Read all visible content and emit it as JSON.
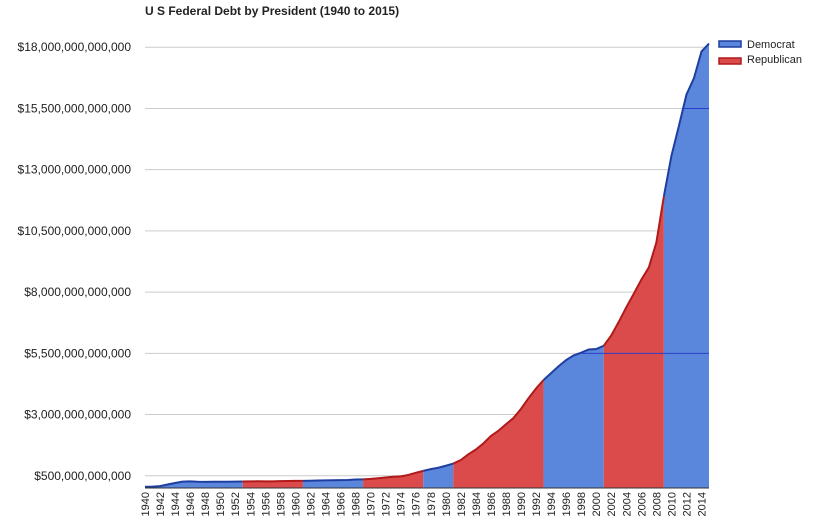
{
  "chart_data": {
    "type": "area",
    "title": "U S Federal Debt by President (1940 to 2015)",
    "xlabel": "",
    "ylabel": "",
    "xlim": [
      1940,
      2015
    ],
    "ylim": [
      0,
      18500000000000
    ],
    "y_ticks": [
      500000000000,
      3000000000000,
      5500000000000,
      8000000000000,
      10500000000000,
      13000000000000,
      15500000000000,
      18000000000000
    ],
    "y_tick_labels": [
      "$500,000,000,000",
      "$3,000,000,000,000",
      "$5,500,000,000,000",
      "$8,000,000,000,000",
      "$10,500,000,000,000",
      "$13,000,000,000,000",
      "$15,500,000,000,000",
      "$18,000,000,000,000"
    ],
    "x_tick_labels": [
      "1940",
      "1942",
      "1944",
      "1946",
      "1948",
      "1950",
      "1952",
      "1954",
      "1956",
      "1958",
      "1960",
      "1962",
      "1964",
      "1966",
      "1968",
      "1970",
      "1972",
      "1974",
      "1976",
      "1978",
      "1980",
      "1982",
      "1984",
      "1986",
      "1988",
      "1990",
      "1992",
      "1994",
      "1996",
      "1998",
      "2000",
      "2002",
      "2004",
      "2006",
      "2008",
      "2010",
      "2012",
      "2014"
    ],
    "grid": true,
    "legend_position": "top-right",
    "colors": {
      "Democrat": "#5a86dc",
      "Republican": "#dc4b4b",
      "Democrat_line": "#1f3fa0",
      "Republican_line": "#b01a1a"
    },
    "series": [
      {
        "name": "Democrat"
      },
      {
        "name": "Republican"
      }
    ],
    "party_periods": [
      {
        "party": "Democrat",
        "start": 1940,
        "end": 1953
      },
      {
        "party": "Republican",
        "start": 1953,
        "end": 1961
      },
      {
        "party": "Democrat",
        "start": 1961,
        "end": 1969
      },
      {
        "party": "Republican",
        "start": 1969,
        "end": 1977
      },
      {
        "party": "Democrat",
        "start": 1977,
        "end": 1981
      },
      {
        "party": "Republican",
        "start": 1981,
        "end": 1993
      },
      {
        "party": "Democrat",
        "start": 1993,
        "end": 2001
      },
      {
        "party": "Republican",
        "start": 2001,
        "end": 2009
      },
      {
        "party": "Democrat",
        "start": 2009,
        "end": 2015
      }
    ],
    "debt": [
      [
        1940,
        51000000000
      ],
      [
        1941,
        58000000000
      ],
      [
        1942,
        79000000000
      ],
      [
        1943,
        143000000000
      ],
      [
        1944,
        204000000000
      ],
      [
        1945,
        260000000000
      ],
      [
        1946,
        271000000000
      ],
      [
        1947,
        257000000000
      ],
      [
        1948,
        252000000000
      ],
      [
        1949,
        253000000000
      ],
      [
        1950,
        257000000000
      ],
      [
        1951,
        255000000000
      ],
      [
        1952,
        259000000000
      ],
      [
        1953,
        266000000000
      ],
      [
        1954,
        271000000000
      ],
      [
        1955,
        274000000000
      ],
      [
        1956,
        273000000000
      ],
      [
        1957,
        272000000000
      ],
      [
        1958,
        280000000000
      ],
      [
        1959,
        287000000000
      ],
      [
        1960,
        291000000000
      ],
      [
        1961,
        289000000000
      ],
      [
        1962,
        298000000000
      ],
      [
        1963,
        306000000000
      ],
      [
        1964,
        312000000000
      ],
      [
        1965,
        317000000000
      ],
      [
        1966,
        320000000000
      ],
      [
        1967,
        326000000000
      ],
      [
        1968,
        348000000000
      ],
      [
        1969,
        354000000000
      ],
      [
        1970,
        371000000000
      ],
      [
        1971,
        398000000000
      ],
      [
        1972,
        427000000000
      ],
      [
        1973,
        458000000000
      ],
      [
        1974,
        475000000000
      ],
      [
        1975,
        533000000000
      ],
      [
        1976,
        620000000000
      ],
      [
        1977,
        699000000000
      ],
      [
        1978,
        772000000000
      ],
      [
        1979,
        827000000000
      ],
      [
        1980,
        908000000000
      ],
      [
        1981,
        998000000000
      ],
      [
        1982,
        1142000000000
      ],
      [
        1983,
        1377000000000
      ],
      [
        1984,
        1572000000000
      ],
      [
        1985,
        1823000000000
      ],
      [
        1986,
        2125000000000
      ],
      [
        1987,
        2340000000000
      ],
      [
        1988,
        2602000000000
      ],
      [
        1989,
        2857000000000
      ],
      [
        1990,
        3233000000000
      ],
      [
        1991,
        3665000000000
      ],
      [
        1992,
        4065000000000
      ],
      [
        1993,
        4411000000000
      ],
      [
        1994,
        4693000000000
      ],
      [
        1995,
        4974000000000
      ],
      [
        1996,
        5225000000000
      ],
      [
        1997,
        5413000000000
      ],
      [
        1998,
        5526000000000
      ],
      [
        1999,
        5656000000000
      ],
      [
        2000,
        5674000000000
      ],
      [
        2001,
        5807000000000
      ],
      [
        2002,
        6228000000000
      ],
      [
        2003,
        6783000000000
      ],
      [
        2004,
        7379000000000
      ],
      [
        2005,
        7933000000000
      ],
      [
        2006,
        8507000000000
      ],
      [
        2007,
        9008000000000
      ],
      [
        2008,
        10025000000000
      ],
      [
        2009,
        11910000000000
      ],
      [
        2010,
        13562000000000
      ],
      [
        2011,
        14790000000000
      ],
      [
        2012,
        16066000000000
      ],
      [
        2013,
        16738000000000
      ],
      [
        2014,
        17824000000000
      ],
      [
        2015,
        18151000000000
      ]
    ]
  }
}
